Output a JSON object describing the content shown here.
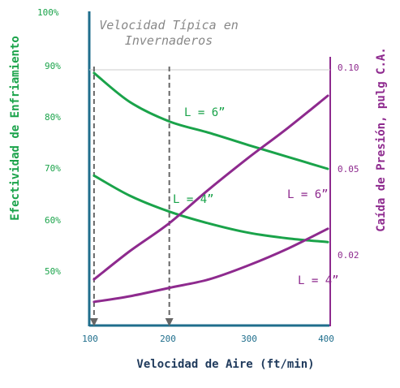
{
  "chart_data": {
    "type": "line",
    "x": [
      100,
      150,
      200,
      250,
      300,
      350,
      400
    ],
    "xlim": [
      100,
      400
    ],
    "x_ticks": [
      "100",
      "200",
      "300",
      "400"
    ],
    "xlabel": "Velocidad de Aire (ft/min)",
    "left_axis": {
      "label": "Efectividad de Enfriamiento",
      "ylim": [
        40,
        100
      ],
      "ticks": [
        "100%",
        "90%",
        "80%",
        "70%",
        "60%",
        "50%"
      ]
    },
    "right_axis": {
      "label": "Caída de Presión, pulg C.A.",
      "ticks": [
        "0.10",
        "0.05",
        "0.02"
      ]
    },
    "annotation": [
      "Velocidad Típica en",
      "Invernaderos"
    ],
    "reference_x": [
      105,
      200
    ],
    "series": [
      {
        "name": "L = 6”",
        "axis": "left",
        "color": "#1aa34a",
        "points": [
          [
            105,
            88.6
          ],
          [
            150,
            83
          ],
          [
            200,
            79.2
          ],
          [
            250,
            77
          ],
          [
            300,
            74.6
          ],
          [
            350,
            72.3
          ],
          [
            400,
            70
          ]
        ]
      },
      {
        "name": "L = 4”",
        "axis": "left",
        "color": "#1aa34a",
        "points": [
          [
            105,
            68.7
          ],
          [
            150,
            64.8
          ],
          [
            200,
            61.7
          ],
          [
            250,
            59.4
          ],
          [
            300,
            57.6
          ],
          [
            350,
            56.5
          ],
          [
            400,
            55.8
          ]
        ]
      },
      {
        "name": "L = 6”",
        "axis": "right",
        "color": "#8e2a8e",
        "points": [
          [
            105,
            0.011
          ],
          [
            150,
            0.021
          ],
          [
            200,
            0.031
          ],
          [
            250,
            0.043
          ],
          [
            300,
            0.056
          ],
          [
            350,
            0.071
          ],
          [
            400,
            0.087
          ]
        ]
      },
      {
        "name": "L = 4”",
        "axis": "right",
        "color": "#8e2a8e",
        "points": [
          [
            105,
            0.003
          ],
          [
            150,
            0.005
          ],
          [
            200,
            0.008
          ],
          [
            250,
            0.011
          ],
          [
            300,
            0.016
          ],
          [
            350,
            0.022
          ],
          [
            400,
            0.029
          ]
        ]
      }
    ]
  }
}
